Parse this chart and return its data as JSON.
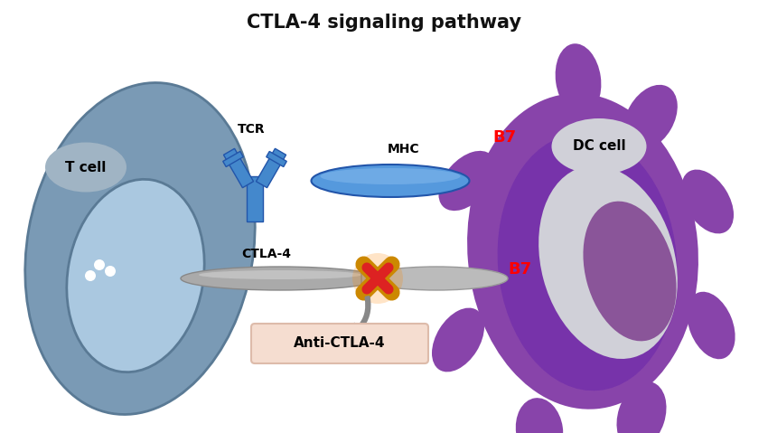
{
  "title": "CTLA-4 signaling pathway",
  "title_fontsize": 15,
  "title_color": "#111111",
  "bg_color": "#ffffff",
  "tcell_body_color": "#7a9ab5",
  "tcell_body_edge": "#5a7a95",
  "tcell_nucleus_color": "#aac8e0",
  "dc_body_color": "#8844aa",
  "tcr_color": "#4488cc",
  "tcr_edge": "#2255aa",
  "mhc_color": "#5599dd",
  "mhc_edge": "#2255aa",
  "ctla4_color": "#aaaaaa",
  "ctla4_edge": "#888888",
  "b7_color": "#bbbbbb",
  "b7_edge": "#999999",
  "cross_red": "#dd2222",
  "cross_orange": "#cc8800",
  "anti_ctla4_bg": "#f5ddd0",
  "anti_ctla4_edge": "#ddbbaa",
  "arrow_color": "#888888",
  "label_tcr": "TCR",
  "label_mhc": "MHC",
  "label_tcell": "T cell",
  "label_dccell": "DC cell",
  "label_ctla4": "CTLA-4",
  "label_b7_top": "B7",
  "label_b7_bottom": "B7",
  "label_anti": "Anti-CTLA-4"
}
